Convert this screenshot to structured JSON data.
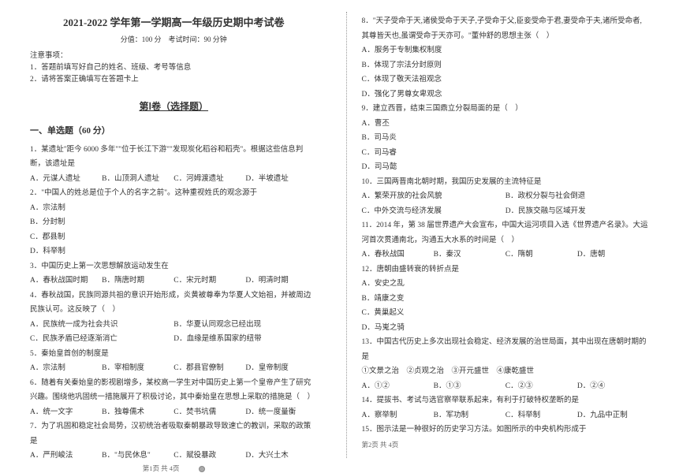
{
  "header": {
    "title": "2021-2022 学年第一学期高一年级历史期中考试卷",
    "subtitle": "分值：100 分　考试时间：90 分钟",
    "notice_label": "注意事项：",
    "notice1": "1．答题前填写好自己的姓名、班级、考号等信息",
    "notice2": "2．请将答案正确填写在答题卡上",
    "section1": "第Ⅰ卷（选择题）",
    "cat": "一、单选题（60 分）"
  },
  "left": {
    "q1": "1．某遗址\"距今 6000 多年\"\"位于长江下游\"\"发现炭化稻谷和稻壳\"。根据这些信息判断，该遗址是",
    "o1": {
      "a": "A．元谋人遗址",
      "b": "B．山顶洞人遗址",
      "c": "C．河姆渡遗址",
      "d": "D．半坡遗址"
    },
    "q2": "2．\"中国人的姓总是位于个人的名字之前\"。这种重视姓氏的观念源于",
    "o2": {
      "a": "A．宗法制",
      "b": "B．分封制",
      "c": "C．郡县制",
      "d": "D．科举制"
    },
    "q3": "3．中国历史上第一次思想解放运动发生在",
    "o3": {
      "a": "A．春秋战国时期",
      "b": "B．隋唐时期",
      "c": "C．宋元时期",
      "d": "D．明清时期"
    },
    "q4": "4．春秋战国，民族同源共祖的意识开始形成，炎黄被尊奉为华夏人文始祖，并被周边民族认可。这反映了（　）",
    "o4": {
      "a": "A．民族统一成为社会共识",
      "b": "B．华夏认同观念已经出现",
      "c": "C．民族矛盾已经逐渐消亡",
      "d": "D．血缘是维系国家的纽带"
    },
    "q5": "5．秦始皇首创的制度是",
    "o5": {
      "a": "A．宗法制",
      "b": "B．宰相制度",
      "c": "C．郡县官僚制",
      "d": "D．皇帝制度"
    },
    "q6": "6．随着有关秦始皇的影视剧增多，某校高一学生对中国历史上第一个皇帝产生了研究兴趣。围绕他巩固统一措施展开了积极讨论，其中秦始皇在思想上采取的措施是（　）",
    "o6": {
      "a": "A．统一文字",
      "b": "B．独尊儒术",
      "c": "C．焚书坑儒",
      "d": "D．统一度量衡"
    },
    "q7": "7．为了巩固和稳定社会局势，汉初统治者吸取秦朝暴政导致速亡的教训，采取的政策是",
    "o7": {
      "a": "A．严刑峻法",
      "b": "B．\"与民休息\"",
      "c": "C．赋役暴政",
      "d": "D．大兴土木"
    }
  },
  "right": {
    "q8": "8．\"天子受命于天,诸侯受命于天子,子受命于父,臣妾受命于君,妻受命于夫,诸所受命者,其尊皆天也,虽谓受命于天亦可。\"董仲舒的思想主张（　）",
    "o8": {
      "a": "A．服务于专制集权制度",
      "b": "B．体现了宗法分封原则",
      "c": "C．体现了敬天法祖观念",
      "d": "D．强化了男尊女卑观念"
    },
    "q9": "9．建立西晋，结束三国鼎立分裂局面的是（　）",
    "o9": {
      "a": "A．曹丕",
      "b": "B．司马炎",
      "c": "C．司马睿",
      "d": "D．司马懿"
    },
    "q10": "10．三国两晋南北朝时期，我国历史发展的主流特征是",
    "o10": {
      "a": "A．繁荣开放的社会风貌",
      "b": "B．政权分裂与社会倒退",
      "c": "C．中外交流与经济发展",
      "d": "D．民族交融与区域开发"
    },
    "q11": "11．2014 年，第 38 届世界遗产大会宣布，中国大运河项目入选《世界遗产名录》。大运河首次贯通南北，沟通五大水系的时间是（　）",
    "o11": {
      "a": "A．春秋战国",
      "b": "B．秦汉",
      "c": "C．隋朝",
      "d": "D．唐朝"
    },
    "q12": "12．唐朝由盛转衰的转折点是",
    "o12": {
      "a": "A．安史之乱",
      "b": "B．靖康之变",
      "c": "C．黄巢起义",
      "d": "D．马嵬之骑"
    },
    "q13": "13．中国古代历史上多次出现社会稳定、经济发展的治世局面，其中出现在唐朝时期的是",
    "q13b": "①文景之治　②贞观之治　③开元盛世　④康乾盛世",
    "o13": {
      "a": "A．①②",
      "b": "B．①③",
      "c": "C．②③",
      "d": "D．②④"
    },
    "q14": "14．提拔书、考试与选官察举联系起来，有利于打破特权垄断的是",
    "o14": {
      "a": "A．察举制",
      "b": "B．军功制",
      "c": "C．科举制",
      "d": "D．九品中正制"
    },
    "q15": "15．图示法是一种很好的历史学习方法。如图所示的中央机构形成于"
  },
  "footer": {
    "left": "第1页 共 4页",
    "right": "第2页 共 4页"
  }
}
